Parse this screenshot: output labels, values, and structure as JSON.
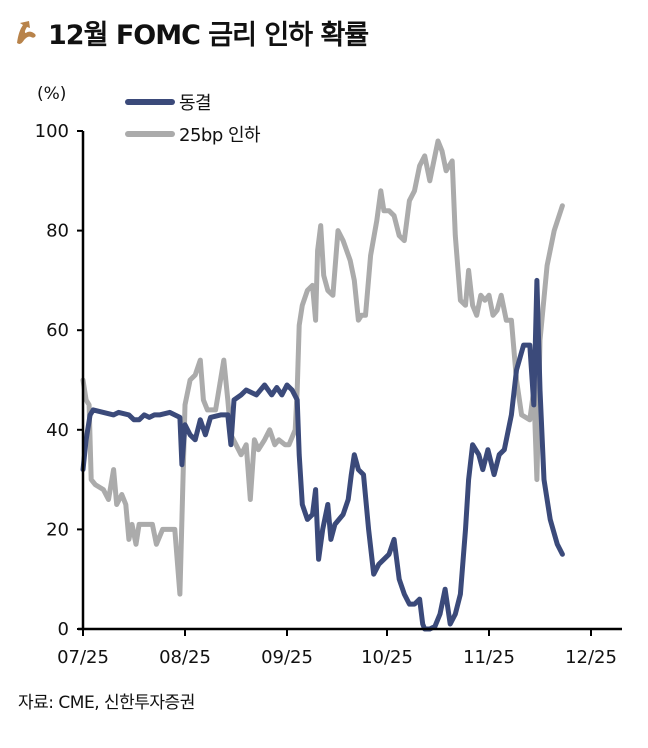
{
  "header": {
    "title": "12월 FOMC 금리 인하 확률",
    "icon": "brown-arrow-icon"
  },
  "source": "자료: CME, 신한투자증권",
  "colors": {
    "hold": "#3B4A7A",
    "cut25": "#ABABAB",
    "icon": "#B8834A",
    "axis": "#000000"
  },
  "chart_data": {
    "type": "line",
    "title": "12월 FOMC 금리 인하 확률",
    "xlabel": "",
    "ylabel": "(%)",
    "ylim": [
      0,
      100
    ],
    "yticks": [
      0,
      20,
      40,
      60,
      80,
      100
    ],
    "xticks": [
      "07/25",
      "08/25",
      "09/25",
      "10/25",
      "11/25",
      "12/25"
    ],
    "grid": false,
    "legend_position": "top-left",
    "legend": [
      "동결",
      "25bp 인하"
    ],
    "x_axis_note": "x is fractional month index: 0 = 07/25, 1 = 08/25, ... 5 = 12/25",
    "series": [
      {
        "name": "동결",
        "color": "#3B4A7A",
        "points": [
          [
            0.0,
            32
          ],
          [
            0.03,
            38
          ],
          [
            0.07,
            43
          ],
          [
            0.1,
            44
          ],
          [
            0.2,
            43.5
          ],
          [
            0.3,
            43
          ],
          [
            0.35,
            43.5
          ],
          [
            0.45,
            43
          ],
          [
            0.5,
            42
          ],
          [
            0.55,
            42
          ],
          [
            0.6,
            43
          ],
          [
            0.65,
            42.5
          ],
          [
            0.7,
            43
          ],
          [
            0.75,
            43
          ],
          [
            0.85,
            43.5
          ],
          [
            0.9,
            43
          ],
          [
            0.95,
            42.5
          ],
          [
            0.97,
            33
          ],
          [
            1.0,
            41
          ],
          [
            1.05,
            39
          ],
          [
            1.1,
            38
          ],
          [
            1.15,
            42
          ],
          [
            1.2,
            39
          ],
          [
            1.25,
            42.5
          ],
          [
            1.35,
            43
          ],
          [
            1.42,
            43
          ],
          [
            1.45,
            37
          ],
          [
            1.48,
            46
          ],
          [
            1.55,
            47
          ],
          [
            1.6,
            48
          ],
          [
            1.7,
            47
          ],
          [
            1.78,
            49
          ],
          [
            1.85,
            47
          ],
          [
            1.9,
            48.5
          ],
          [
            1.95,
            47
          ],
          [
            2.0,
            49
          ],
          [
            2.05,
            48
          ],
          [
            2.1,
            46
          ],
          [
            2.12,
            35
          ],
          [
            2.15,
            25
          ],
          [
            2.2,
            22
          ],
          [
            2.25,
            23
          ],
          [
            2.28,
            28
          ],
          [
            2.31,
            14
          ],
          [
            2.35,
            20
          ],
          [
            2.4,
            25
          ],
          [
            2.43,
            18
          ],
          [
            2.47,
            21
          ],
          [
            2.55,
            23
          ],
          [
            2.6,
            26
          ],
          [
            2.63,
            31
          ],
          [
            2.66,
            35
          ],
          [
            2.7,
            32
          ],
          [
            2.75,
            31
          ],
          [
            2.8,
            20
          ],
          [
            2.85,
            11
          ],
          [
            2.9,
            13
          ],
          [
            2.95,
            14
          ],
          [
            3.0,
            15
          ],
          [
            3.05,
            18
          ],
          [
            3.1,
            10
          ],
          [
            3.15,
            7
          ],
          [
            3.2,
            5
          ],
          [
            3.25,
            5
          ],
          [
            3.3,
            6
          ],
          [
            3.33,
            1
          ],
          [
            3.35,
            0
          ],
          [
            3.4,
            0
          ],
          [
            3.45,
            0.5
          ],
          [
            3.5,
            3
          ],
          [
            3.55,
            8
          ],
          [
            3.6,
            1
          ],
          [
            3.65,
            3
          ],
          [
            3.7,
            7
          ],
          [
            3.75,
            20
          ],
          [
            3.78,
            30
          ],
          [
            3.82,
            37
          ],
          [
            3.88,
            35
          ],
          [
            3.92,
            32
          ],
          [
            3.97,
            36
          ],
          [
            4.03,
            31
          ],
          [
            4.08,
            35
          ],
          [
            4.13,
            36
          ],
          [
            4.2,
            43
          ],
          [
            4.25,
            52
          ],
          [
            4.32,
            57
          ],
          [
            4.38,
            57
          ],
          [
            4.42,
            45
          ],
          [
            4.45,
            70
          ],
          [
            4.48,
            48
          ],
          [
            4.52,
            30
          ],
          [
            4.58,
            22
          ],
          [
            4.65,
            17
          ],
          [
            4.7,
            15
          ]
        ]
      },
      {
        "name": "25bp 인하",
        "color": "#ABABAB",
        "points": [
          [
            0.0,
            50
          ],
          [
            0.03,
            46
          ],
          [
            0.06,
            45
          ],
          [
            0.08,
            30
          ],
          [
            0.12,
            29
          ],
          [
            0.2,
            28
          ],
          [
            0.25,
            26
          ],
          [
            0.3,
            32
          ],
          [
            0.33,
            25
          ],
          [
            0.38,
            27
          ],
          [
            0.42,
            25
          ],
          [
            0.45,
            18
          ],
          [
            0.48,
            21
          ],
          [
            0.52,
            17
          ],
          [
            0.55,
            21
          ],
          [
            0.62,
            21
          ],
          [
            0.68,
            21
          ],
          [
            0.72,
            17
          ],
          [
            0.78,
            20
          ],
          [
            0.85,
            20
          ],
          [
            0.9,
            20
          ],
          [
            0.95,
            7
          ],
          [
            1.0,
            45
          ],
          [
            1.05,
            50
          ],
          [
            1.1,
            51
          ],
          [
            1.15,
            54
          ],
          [
            1.18,
            46
          ],
          [
            1.22,
            44
          ],
          [
            1.3,
            44
          ],
          [
            1.38,
            54
          ],
          [
            1.42,
            46
          ],
          [
            1.45,
            39
          ],
          [
            1.5,
            37
          ],
          [
            1.55,
            35
          ],
          [
            1.6,
            37
          ],
          [
            1.64,
            26
          ],
          [
            1.68,
            38
          ],
          [
            1.72,
            36
          ],
          [
            1.78,
            38
          ],
          [
            1.83,
            40
          ],
          [
            1.88,
            37
          ],
          [
            1.92,
            38
          ],
          [
            1.98,
            37
          ],
          [
            2.02,
            37
          ],
          [
            2.08,
            40
          ],
          [
            2.1,
            48
          ],
          [
            2.12,
            61
          ],
          [
            2.15,
            65
          ],
          [
            2.2,
            68
          ],
          [
            2.25,
            69
          ],
          [
            2.28,
            62
          ],
          [
            2.3,
            76
          ],
          [
            2.33,
            81
          ],
          [
            2.36,
            71
          ],
          [
            2.4,
            68
          ],
          [
            2.45,
            67
          ],
          [
            2.5,
            80
          ],
          [
            2.55,
            78
          ],
          [
            2.62,
            74
          ],
          [
            2.66,
            70
          ],
          [
            2.7,
            62
          ],
          [
            2.73,
            63
          ],
          [
            2.77,
            63
          ],
          [
            2.82,
            75
          ],
          [
            2.88,
            82
          ],
          [
            2.92,
            88
          ],
          [
            2.95,
            84
          ],
          [
            3.0,
            84
          ],
          [
            3.05,
            83
          ],
          [
            3.1,
            79
          ],
          [
            3.15,
            78
          ],
          [
            3.2,
            86
          ],
          [
            3.25,
            88
          ],
          [
            3.3,
            93
          ],
          [
            3.35,
            95
          ],
          [
            3.4,
            90
          ],
          [
            3.45,
            95
          ],
          [
            3.48,
            98
          ],
          [
            3.52,
            96
          ],
          [
            3.56,
            92
          ],
          [
            3.62,
            94
          ],
          [
            3.65,
            79
          ],
          [
            3.7,
            66
          ],
          [
            3.75,
            65
          ],
          [
            3.78,
            72
          ],
          [
            3.82,
            65
          ],
          [
            3.86,
            63
          ],
          [
            3.9,
            67
          ],
          [
            3.94,
            66
          ],
          [
            3.98,
            67
          ],
          [
            4.02,
            63
          ],
          [
            4.06,
            64
          ],
          [
            4.1,
            67
          ],
          [
            4.15,
            62
          ],
          [
            4.2,
            62
          ],
          [
            4.25,
            50
          ],
          [
            4.3,
            43
          ],
          [
            4.38,
            42
          ],
          [
            4.42,
            48
          ],
          [
            4.45,
            30
          ],
          [
            4.48,
            58
          ],
          [
            4.55,
            73
          ],
          [
            4.62,
            80
          ],
          [
            4.7,
            85
          ]
        ]
      }
    ]
  }
}
